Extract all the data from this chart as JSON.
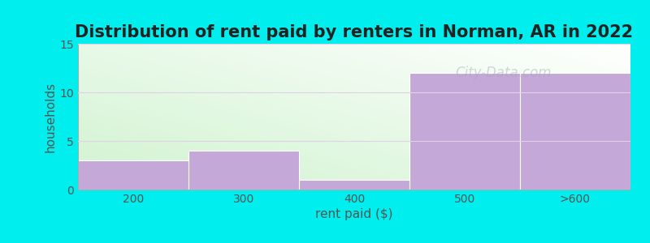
{
  "title": "Distribution of rent paid by renters in Norman, AR in 2022",
  "categories": [
    "200",
    "300",
    "400",
    "500",
    ">600"
  ],
  "values": [
    3,
    4,
    1,
    12,
    12
  ],
  "bar_color": "#c4a8d8",
  "bar_edgecolor": "#ffffff",
  "xlabel": "rent paid ($)",
  "ylabel": "households",
  "ylim": [
    0,
    15
  ],
  "yticks": [
    0,
    5,
    10,
    15
  ],
  "background_color": "#00eeee",
  "title_fontsize": 15,
  "axis_label_fontsize": 11,
  "tick_fontsize": 10,
  "watermark_text": "City-Data.com",
  "watermark_color": "#a0aab0",
  "watermark_alpha": 0.45,
  "grad_bottom_left": "#d0eed0",
  "grad_top_right": "#f5fbf5"
}
